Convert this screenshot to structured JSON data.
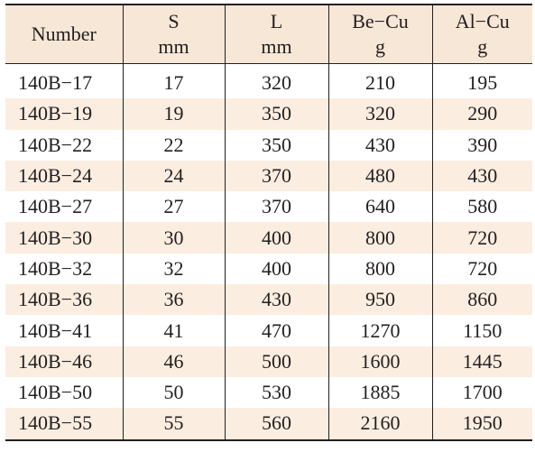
{
  "columns": [
    {
      "line1": "Number",
      "line2": ""
    },
    {
      "line1": "S",
      "line2": "mm"
    },
    {
      "line1": "L",
      "line2": "mm"
    },
    {
      "line1": "Be−Cu",
      "line2": "g"
    },
    {
      "line1": "Al−Cu",
      "line2": "g"
    }
  ],
  "rows": [
    [
      "140B−17",
      "17",
      "320",
      "210",
      "195"
    ],
    [
      "140B−19",
      "19",
      "350",
      "320",
      "290"
    ],
    [
      "140B−22",
      "22",
      "350",
      "430",
      "390"
    ],
    [
      "140B−24",
      "24",
      "370",
      "480",
      "430"
    ],
    [
      "140B−27",
      "27",
      "370",
      "640",
      "580"
    ],
    [
      "140B−30",
      "30",
      "400",
      "800",
      "720"
    ],
    [
      "140B−32",
      "32",
      "400",
      "800",
      "720"
    ],
    [
      "140B−36",
      "36",
      "430",
      "950",
      "860"
    ],
    [
      "140B−41",
      "41",
      "470",
      "1270",
      "1150"
    ],
    [
      "140B−46",
      "46",
      "500",
      "1600",
      "1445"
    ],
    [
      "140B−50",
      "50",
      "530",
      "1885",
      "1700"
    ],
    [
      "140B−55",
      "55",
      "560",
      "2160",
      "1950"
    ]
  ]
}
